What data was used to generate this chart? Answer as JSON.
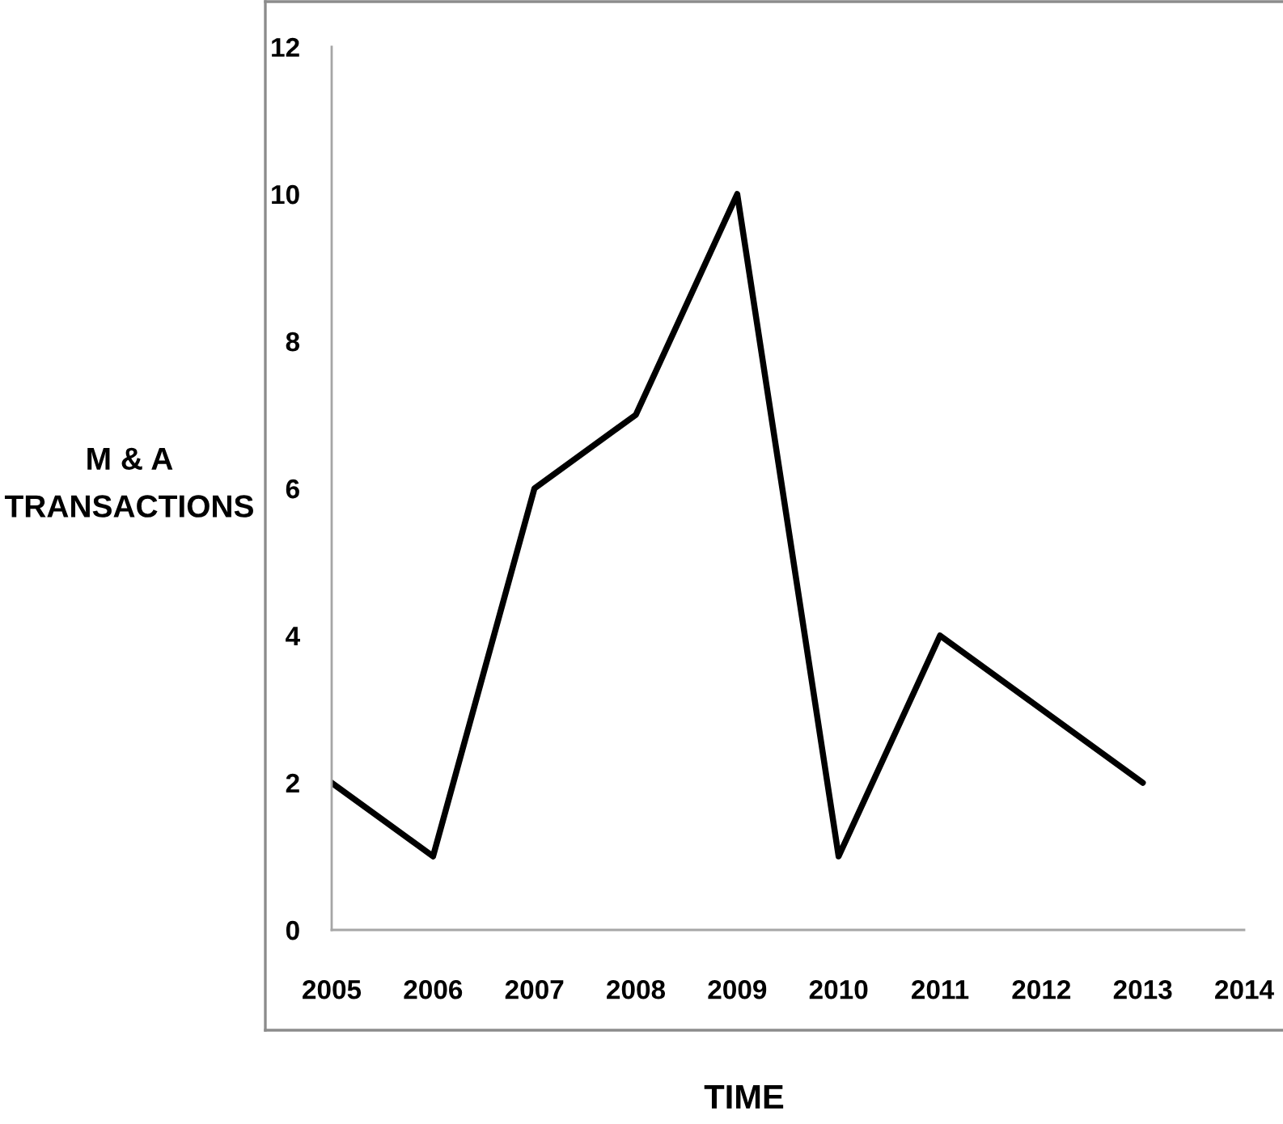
{
  "chart_data": {
    "type": "line",
    "xlabel": "TIME",
    "ylabel": "M & A\nTRANSACTIONS",
    "categories": [
      "2005",
      "2006",
      "2007",
      "2008",
      "2009",
      "2010",
      "2011",
      "2012",
      "2013",
      "2014"
    ],
    "series": [
      {
        "color": "#000000",
        "values": [
          2,
          1,
          6,
          7,
          10,
          1,
          4,
          3,
          2,
          null
        ]
      }
    ],
    "ylim": [
      0,
      12
    ],
    "yticks": [
      0,
      2,
      4,
      6,
      8,
      10,
      12
    ],
    "grid": false,
    "line_style": "solid"
  }
}
